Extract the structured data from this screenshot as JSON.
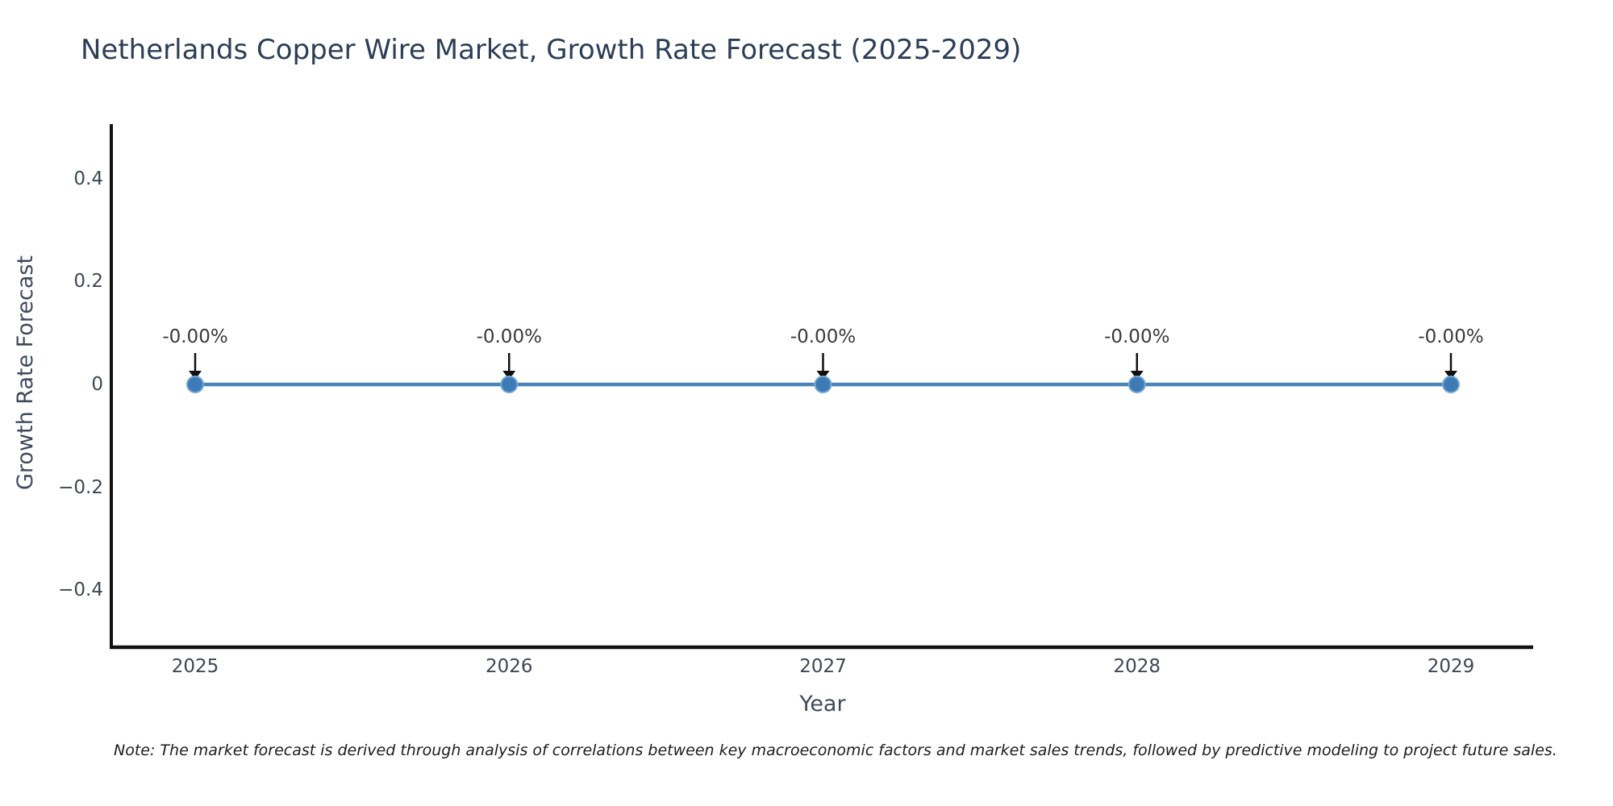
{
  "title": "Netherlands Copper Wire Market, Growth Rate Forecast (2025-2029)",
  "note": "Note: The market forecast is derived through analysis of correlations between key macroeconomic factors and market sales trends, followed by predictive modeling to project future sales.",
  "colors": {
    "background": "#ffffff",
    "title": "#2c3e56",
    "axis_spine": "#111111",
    "tick_label": "#3e4752",
    "axis_label": "#3f4a5c",
    "line": "#4a84b8",
    "marker_fill": "#3d7ab6",
    "marker_edge": "#77a9d3",
    "annotation_text": "#3a3a3a",
    "arrow": "#101010",
    "note_text": "#1c1c1c"
  },
  "chart_data": {
    "type": "line",
    "title": "Netherlands Copper Wire Market, Growth Rate Forecast (2025-2029)",
    "xlabel": "Year",
    "ylabel": "Growth Rate Forecast",
    "x": [
      2025,
      2026,
      2027,
      2028,
      2029
    ],
    "x_tick_labels": [
      "2025",
      "2026",
      "2027",
      "2028",
      "2029"
    ],
    "series": [
      {
        "name": "Growth Rate Forecast",
        "values": [
          0,
          0,
          0,
          0,
          0
        ]
      }
    ],
    "point_labels": [
      "-0.00%",
      "-0.00%",
      "-0.00%",
      "-0.00%",
      "-0.00%"
    ],
    "y_ticks": [
      0.4,
      0.2,
      0,
      -0.2,
      -0.4
    ],
    "y_tick_labels": [
      "0.4",
      "0.2",
      "0",
      "−0.2",
      "−0.4"
    ],
    "ylim": [
      -0.5,
      0.5
    ],
    "grid": false,
    "legend": "none",
    "marker": "circle",
    "annotations_have_arrows": true
  }
}
